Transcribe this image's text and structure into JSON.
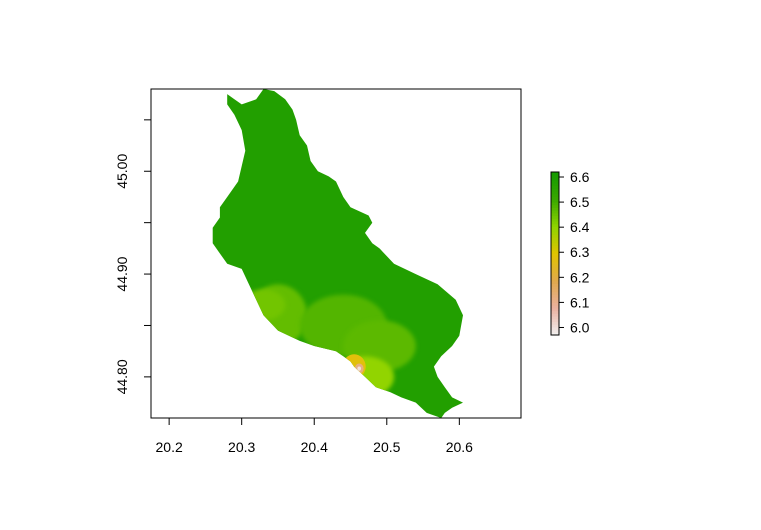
{
  "chart_data": {
    "type": "heatmap",
    "title": "",
    "xlabel": "",
    "ylabel": "",
    "xlim": [
      20.175,
      20.685
    ],
    "ylim": [
      44.76,
      45.08
    ],
    "x_ticks": [
      "20.2",
      "20.3",
      "20.4",
      "20.5",
      "20.6"
    ],
    "x_tick_values": [
      20.2,
      20.3,
      20.4,
      20.5,
      20.6
    ],
    "y_ticks": [
      "44.80",
      "",
      "44.90",
      "",
      "45.00",
      ""
    ],
    "y_tick_values": [
      44.8,
      44.85,
      44.9,
      44.95,
      45.0,
      45.05
    ],
    "colorbar": {
      "min": 5.97,
      "max": 6.62,
      "ticks": [
        "6.0",
        "6.1",
        "6.2",
        "6.3",
        "6.4",
        "6.5",
        "6.6"
      ],
      "tick_values": [
        6.0,
        6.1,
        6.2,
        6.3,
        6.4,
        6.5,
        6.6
      ],
      "colors": [
        "#f2f2f2",
        "#eab1a0",
        "#e0a94c",
        "#e1c400",
        "#8fd400",
        "#3aa800",
        "#149a00"
      ]
    },
    "grid": false,
    "legend": "right",
    "region_fill_value": 6.58,
    "region_outline": [
      [
        20.28,
        45.075
      ],
      [
        20.29,
        45.07
      ],
      [
        20.3,
        45.065
      ],
      [
        20.32,
        45.07
      ],
      [
        20.33,
        45.08
      ],
      [
        20.345,
        45.078
      ],
      [
        20.36,
        45.07
      ],
      [
        20.37,
        45.06
      ],
      [
        20.375,
        45.05
      ],
      [
        20.38,
        45.035
      ],
      [
        20.39,
        45.025
      ],
      [
        20.395,
        45.01
      ],
      [
        20.405,
        45.0
      ],
      [
        20.42,
        44.995
      ],
      [
        20.43,
        44.99
      ],
      [
        20.44,
        44.975
      ],
      [
        20.45,
        44.965
      ],
      [
        20.475,
        44.957
      ],
      [
        20.48,
        44.95
      ],
      [
        20.47,
        44.94
      ],
      [
        20.48,
        44.93
      ],
      [
        20.49,
        44.925
      ],
      [
        20.51,
        44.91
      ],
      [
        20.54,
        44.9
      ],
      [
        20.57,
        44.89
      ],
      [
        20.595,
        44.875
      ],
      [
        20.605,
        44.86
      ],
      [
        20.6,
        44.84
      ],
      [
        20.59,
        44.83
      ],
      [
        20.575,
        44.82
      ],
      [
        20.565,
        44.81
      ],
      [
        20.57,
        44.8
      ],
      [
        20.58,
        44.79
      ],
      [
        20.59,
        44.78
      ],
      [
        20.605,
        44.775
      ],
      [
        20.59,
        44.77
      ],
      [
        20.58,
        44.765
      ],
      [
        20.575,
        44.76
      ],
      [
        20.555,
        44.765
      ],
      [
        20.54,
        44.775
      ],
      [
        20.52,
        44.78
      ],
      [
        20.505,
        44.785
      ],
      [
        20.485,
        44.79
      ],
      [
        20.47,
        44.8
      ],
      [
        20.455,
        44.81
      ],
      [
        20.45,
        44.815
      ],
      [
        20.44,
        44.82
      ],
      [
        20.43,
        44.825
      ],
      [
        20.4,
        44.83
      ],
      [
        20.38,
        44.835
      ],
      [
        20.35,
        44.845
      ],
      [
        20.33,
        44.86
      ],
      [
        20.32,
        44.875
      ],
      [
        20.31,
        44.89
      ],
      [
        20.3,
        44.905
      ],
      [
        20.28,
        44.91
      ],
      [
        20.27,
        44.92
      ],
      [
        20.26,
        44.93
      ],
      [
        20.26,
        44.945
      ],
      [
        20.27,
        44.955
      ],
      [
        20.27,
        44.965
      ],
      [
        20.28,
        44.975
      ],
      [
        20.295,
        44.99
      ],
      [
        20.3,
        45.005
      ],
      [
        20.305,
        45.02
      ],
      [
        20.3,
        45.04
      ],
      [
        20.29,
        45.055
      ],
      [
        20.28,
        45.065
      ]
    ],
    "low_value_patches": [
      {
        "x": 20.35,
        "y": 44.86,
        "rx": 0.04,
        "ry": 0.03,
        "value": 6.46
      },
      {
        "x": 20.33,
        "y": 44.87,
        "rx": 0.03,
        "ry": 0.015,
        "value": 6.44
      },
      {
        "x": 20.44,
        "y": 44.85,
        "rx": 0.06,
        "ry": 0.03,
        "value": 6.48
      },
      {
        "x": 20.49,
        "y": 44.83,
        "rx": 0.05,
        "ry": 0.025,
        "value": 6.47
      },
      {
        "x": 20.47,
        "y": 44.8,
        "rx": 0.04,
        "ry": 0.02,
        "value": 6.4
      },
      {
        "x": 20.455,
        "y": 44.81,
        "rx": 0.016,
        "ry": 0.012,
        "value": 6.28
      },
      {
        "x": 20.462,
        "y": 44.808,
        "rx": 0.006,
        "ry": 0.005,
        "value": 6.12
      },
      {
        "x": 20.462,
        "y": 44.808,
        "rx": 0.0025,
        "ry": 0.002,
        "value": 6.0
      }
    ]
  }
}
